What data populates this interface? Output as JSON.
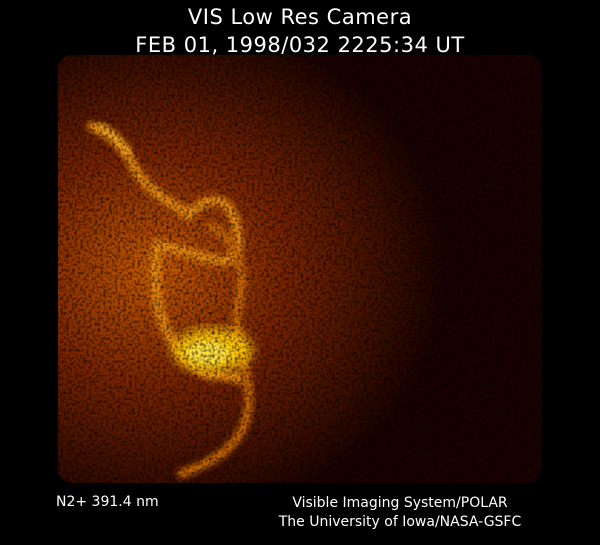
{
  "header": {
    "title": "VIS Low Res Camera",
    "timestamp": "FEB 01, 1998/032 2225:34 UT"
  },
  "image": {
    "subject": "auroral emission image",
    "colormap": [
      "#000000",
      "#3a0800",
      "#8a2a00",
      "#d46a00",
      "#ffd000"
    ]
  },
  "footer": {
    "wavelength": "N2+ 391.4 nm",
    "credit_line1": "Visible Imaging System/POLAR",
    "credit_line2": "The University of Iowa/NASA-GSFC"
  }
}
